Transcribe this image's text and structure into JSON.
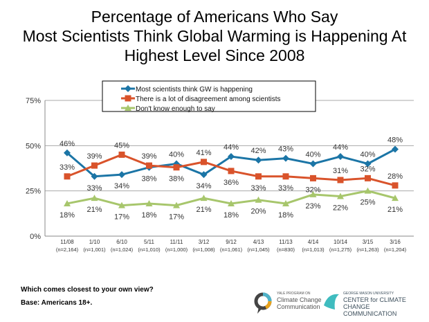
{
  "title_lines": [
    "Percentage of Americans Who Say",
    "Most Scientists Think Global Warming is Happening At",
    "Highest Level Since 2008"
  ],
  "chart_data": {
    "type": "line",
    "categories": [
      "11/08",
      "1/10",
      "6/10",
      "5/11",
      "11/11",
      "3/12",
      "9/12",
      "4/13",
      "11/13",
      "4/14",
      "10/14",
      "3/15",
      "3/16"
    ],
    "sample_sizes": [
      "(n=2,164)",
      "(n=1,001)",
      "(n=1,024)",
      "(n=1,010)",
      "(n=1,000)",
      "(n=1,008)",
      "(n=1,061)",
      "(n=1,045)",
      "(n=830)",
      "(n=1,013)",
      "(n=1,275)",
      "(n=1,263)",
      "(n=1,204)"
    ],
    "ylim": [
      0,
      75
    ],
    "yticks": [
      "0%",
      "25%",
      "50%",
      "75%"
    ],
    "grid": true,
    "legend": "top",
    "series": [
      {
        "name": "Most scientists think GW is happening",
        "color": "#1b75a6",
        "marker": "diamond",
        "values": [
          46,
          33,
          34,
          38,
          40,
          34,
          44,
          42,
          43,
          40,
          44,
          40,
          48
        ]
      },
      {
        "name": "There is a lot of disagreement among scientists",
        "color": "#d9532b",
        "marker": "square",
        "values": [
          33,
          39,
          45,
          39,
          38,
          41,
          36,
          33,
          33,
          32,
          31,
          32,
          28
        ]
      },
      {
        "name": "Don't know enough to say",
        "color": "#a7c66c",
        "marker": "triangle",
        "values": [
          18,
          21,
          17,
          18,
          17,
          21,
          18,
          20,
          18,
          23,
          22,
          25,
          21
        ]
      }
    ]
  },
  "footer": {
    "question": "Which comes closest to your own view?",
    "base": "Base: Americans 18+."
  },
  "logos": {
    "yale": [
      "YALE PROGRAM ON",
      "Climate Change",
      "Communication"
    ],
    "gmu": [
      "GEORGE MASON UNIVERSITY",
      "CENTER for CLIMATE CHANGE",
      "COMMUNICATION"
    ]
  }
}
